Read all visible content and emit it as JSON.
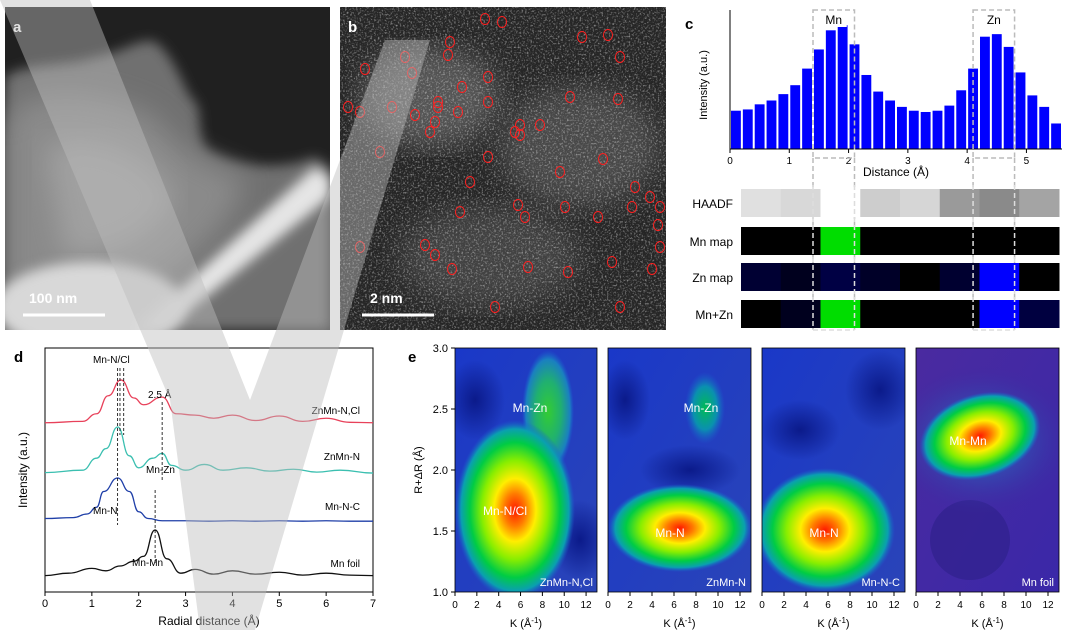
{
  "panel_a": {
    "letter": "a",
    "scale_bar": "100 nm"
  },
  "panel_b": {
    "letter": "b",
    "scale_bar": "2 nm"
  },
  "panel_c": {
    "letter": "c",
    "ylabel": "Intensity (a.u.)",
    "xlabel": "Distance (Å)",
    "region_labels": [
      "Mn",
      "Zn"
    ],
    "map_rows": [
      "HAADF",
      "Mn map",
      "Zn map",
      "Mn+Zn"
    ],
    "colors": {
      "bar": "#0000ff",
      "mn_map": "#00dd00",
      "zn_map": "#0000ff"
    }
  },
  "panel_d": {
    "letter": "d",
    "ylabel": "Intensity (a.u.)",
    "xlabel": "Radial distance (Å)",
    "annotations": [
      "Mn-N/Cl",
      "2.5 Å",
      "Mn-Zn",
      "Mn-N",
      "Mn-Mn"
    ],
    "series_labels": [
      "ZnMn-N,Cl",
      "ZnMn-N",
      "Mn-N-C",
      "Mn foil"
    ],
    "colors": [
      "#e8415a",
      "#3bbfb0",
      "#1f3fa8",
      "#111111"
    ]
  },
  "panel_e": {
    "letter": "e",
    "ylabel": "R+ΔR (Å)",
    "xlabel": "K (Å",
    "xlabel_sup": "-1",
    "xlabel_end": ")",
    "subpanels": [
      {
        "name": "ZnMn-N,Cl",
        "peaks": [
          "Mn-N/Cl",
          "Mn-Zn"
        ]
      },
      {
        "name": "ZnMn-N",
        "peaks": [
          "Mn-N",
          "Mn-Zn"
        ]
      },
      {
        "name": "Mn-N-C",
        "peaks": [
          "Mn-N"
        ]
      },
      {
        "name": "Mn foil",
        "peaks": [
          "Mn-Mn"
        ]
      }
    ]
  },
  "chart_data": [
    {
      "type": "bar",
      "panel": "c",
      "x": [
        0.1,
        0.3,
        0.5,
        0.7,
        0.9,
        1.1,
        1.3,
        1.5,
        1.7,
        1.9,
        2.1,
        2.3,
        2.5,
        2.7,
        2.9,
        3.1,
        3.3,
        3.5,
        3.7,
        3.9,
        4.1,
        4.3,
        4.5,
        4.7,
        4.9,
        5.1,
        5.3,
        5.5
      ],
      "values": [
        0.3,
        0.31,
        0.35,
        0.38,
        0.43,
        0.5,
        0.63,
        0.78,
        0.93,
        0.97,
        0.82,
        0.58,
        0.45,
        0.38,
        0.33,
        0.3,
        0.29,
        0.3,
        0.34,
        0.46,
        0.63,
        0.88,
        0.9,
        0.8,
        0.6,
        0.42,
        0.33,
        0.2
      ],
      "xlabel": "Distance (Å)",
      "ylabel": "Intensity (a.u.)",
      "xlim": [
        0,
        5.6
      ],
      "xticks": [
        0,
        1,
        2,
        3,
        4,
        5
      ],
      "ylim": [
        0,
        1.05
      ],
      "highlight_regions": [
        {
          "label": "Mn",
          "x": [
            1.4,
            2.1
          ]
        },
        {
          "label": "Zn",
          "x": [
            4.1,
            4.8
          ]
        }
      ]
    },
    {
      "type": "line",
      "panel": "d",
      "xlabel": "Radial distance (Å)",
      "ylabel": "Intensity (a.u.)",
      "xlim": [
        0,
        7
      ],
      "xticks": [
        0,
        1,
        2,
        3,
        4,
        5,
        6,
        7
      ],
      "series": [
        {
          "name": "ZnMn-N,Cl",
          "x": [
            0,
            0.8,
            1.1,
            1.35,
            1.62,
            1.9,
            2.1,
            2.5,
            2.8,
            3.2,
            3.6,
            4.0,
            4.5,
            5.0,
            5.5,
            6.0,
            6.5,
            7.0
          ],
          "y": [
            0.05,
            0.08,
            0.25,
            0.65,
            1.0,
            0.6,
            0.45,
            0.62,
            0.25,
            0.22,
            0.15,
            0.22,
            0.1,
            0.2,
            0.08,
            0.15,
            0.06,
            0.05
          ]
        },
        {
          "name": "ZnMn-N",
          "x": [
            0,
            0.8,
            1.1,
            1.3,
            1.55,
            1.8,
            2.0,
            2.3,
            2.5,
            2.7,
            3.0,
            3.4,
            3.8,
            4.3,
            4.8,
            5.3,
            5.8,
            6.3,
            7.0
          ],
          "y": [
            0.05,
            0.1,
            0.35,
            0.55,
            1.0,
            0.4,
            0.15,
            0.35,
            0.45,
            0.2,
            0.1,
            0.22,
            0.1,
            0.15,
            0.08,
            0.12,
            0.06,
            0.1,
            0.04
          ]
        },
        {
          "name": "Mn-N-C",
          "x": [
            0,
            0.6,
            0.9,
            1.1,
            1.25,
            1.55,
            1.8,
            2.0,
            2.2,
            2.5,
            3.0,
            3.5,
            4.0,
            4.5,
            5.0,
            5.5,
            6.0,
            6.5,
            7.0
          ],
          "y": [
            0.1,
            0.12,
            0.2,
            0.35,
            0.7,
            1.0,
            0.7,
            0.25,
            0.1,
            0.05,
            0.05,
            0.04,
            0.05,
            0.04,
            0.05,
            0.04,
            0.05,
            0.04,
            0.04
          ]
        },
        {
          "name": "Mn foil",
          "x": [
            0,
            0.5,
            1.0,
            1.3,
            1.6,
            1.9,
            2.1,
            2.35,
            2.6,
            2.9,
            3.2,
            3.6,
            4.0,
            4.5,
            5.0,
            5.5,
            6.0,
            6.5,
            7.0
          ],
          "y": [
            0.05,
            0.1,
            0.2,
            0.15,
            0.25,
            0.35,
            0.45,
            1.0,
            0.4,
            0.1,
            0.18,
            0.08,
            0.15,
            0.08,
            0.12,
            0.06,
            0.1,
            0.06,
            0.05
          ]
        }
      ],
      "markers": [
        {
          "label": "Mn-N/Cl",
          "x": 1.62
        },
        {
          "label": "2.5 Å",
          "x": 2.5
        }
      ]
    },
    {
      "type": "heatmap",
      "panel": "e",
      "xlabel": "K (Å-1)",
      "ylabel": "R+ΔR (Å)",
      "xlim": [
        0,
        13
      ],
      "xticks": [
        0,
        2,
        4,
        6,
        8,
        10,
        12
      ],
      "ylim": [
        1.0,
        3.0
      ],
      "yticks": [
        1.0,
        1.5,
        2.0,
        2.5,
        3.0
      ],
      "subplots": [
        {
          "name": "ZnMn-N,Cl",
          "peaks": [
            {
              "label": "Mn-N/Cl",
              "k": 5.5,
              "r": 1.62,
              "intensity": 1.0
            },
            {
              "label": "Mn-Zn",
              "k": 8.5,
              "r": 2.55,
              "intensity": 0.45
            }
          ]
        },
        {
          "name": "ZnMn-N",
          "peaks": [
            {
              "label": "Mn-N",
              "k": 5.5,
              "r": 1.5,
              "intensity": 1.0
            },
            {
              "label": "Mn-Zn",
              "k": 8.8,
              "r": 2.55,
              "intensity": 0.35
            }
          ]
        },
        {
          "name": "Mn-N-C",
          "peaks": [
            {
              "label": "Mn-N",
              "k": 4.5,
              "r": 1.52,
              "intensity": 1.0
            }
          ]
        },
        {
          "name": "Mn foil",
          "peaks": [
            {
              "label": "Mn-Mn",
              "k": 5.0,
              "r": 2.22,
              "intensity": 1.0
            }
          ]
        }
      ]
    }
  ]
}
